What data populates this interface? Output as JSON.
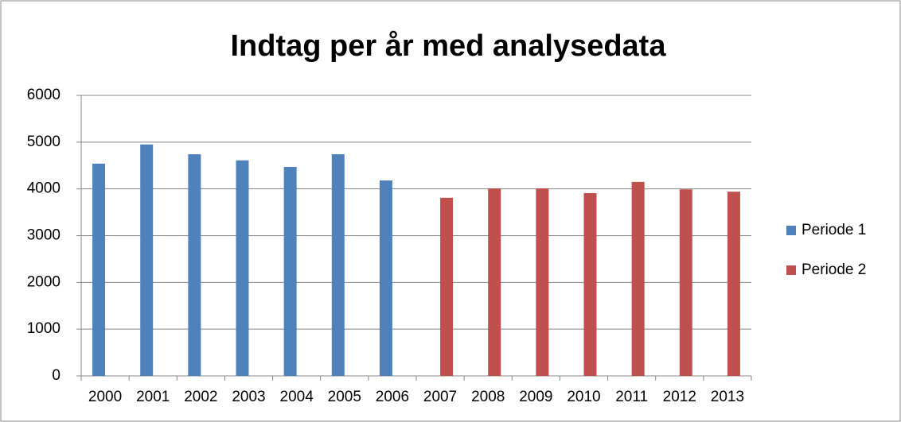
{
  "chart_data": {
    "type": "bar",
    "title": "Indtag per år med analysedata",
    "categories": [
      "2000",
      "2001",
      "2002",
      "2003",
      "2004",
      "2005",
      "2006",
      "2007",
      "2008",
      "2009",
      "2010",
      "2011",
      "2012",
      "2013"
    ],
    "series": [
      {
        "name": "Periode 1",
        "color": "#4f81bd",
        "values": [
          4540,
          4950,
          4740,
          4610,
          4470,
          4740,
          4180,
          null,
          null,
          null,
          null,
          null,
          null,
          null
        ]
      },
      {
        "name": "Periode 2",
        "color": "#c0504d",
        "values": [
          null,
          null,
          null,
          null,
          null,
          null,
          null,
          3810,
          4010,
          4010,
          3910,
          4150,
          3990,
          3940
        ]
      }
    ],
    "ylim": [
      0,
      6000
    ],
    "yticks": [
      0,
      1000,
      2000,
      3000,
      4000,
      5000,
      6000
    ],
    "grid": true,
    "legend": "right"
  }
}
